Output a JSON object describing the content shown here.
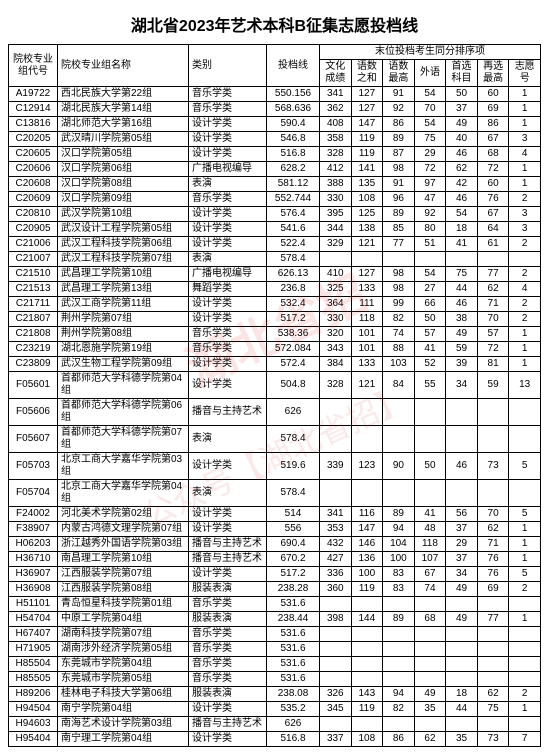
{
  "title": "湖北省2023年艺术本科B征集志愿投档线",
  "header_group": "末位投档考生同分排序项",
  "columns": {
    "code": "院校专业组代号",
    "name": "院校专业组名称",
    "type": "类别",
    "score": "投档线",
    "s1": "文化成绩",
    "s2": "语数之和",
    "s3": "语数最高",
    "s4": "外语",
    "s5": "首选科目",
    "s6": "再选最高",
    "s7": "志愿号"
  },
  "rows": [
    {
      "code": "A19722",
      "name": "西北民族大学第22组",
      "type": "音乐学类",
      "score": "550.156",
      "s1": "341",
      "s2": "127",
      "s3": "91",
      "s4": "54",
      "s5": "50",
      "s6": "60",
      "s7": "1"
    },
    {
      "code": "C12914",
      "name": "湖北民族大学第14组",
      "type": "音乐学类",
      "score": "568.636",
      "s1": "362",
      "s2": "127",
      "s3": "92",
      "s4": "70",
      "s5": "37",
      "s6": "69",
      "s7": "1"
    },
    {
      "code": "C13816",
      "name": "湖北师范大学第16组",
      "type": "设计学类",
      "score": "590.4",
      "s1": "408",
      "s2": "147",
      "s3": "86",
      "s4": "54",
      "s5": "49",
      "s6": "86",
      "s7": "1"
    },
    {
      "code": "C20205",
      "name": "武汉晴川学院第05组",
      "type": "设计学类",
      "score": "546.8",
      "s1": "358",
      "s2": "119",
      "s3": "89",
      "s4": "75",
      "s5": "40",
      "s6": "67",
      "s7": "3"
    },
    {
      "code": "C20605",
      "name": "汉口学院第05组",
      "type": "设计学类",
      "score": "516.8",
      "s1": "328",
      "s2": "119",
      "s3": "87",
      "s4": "29",
      "s5": "46",
      "s6": "68",
      "s7": "4"
    },
    {
      "code": "C20606",
      "name": "汉口学院第06组",
      "type": "广播电视编导",
      "score": "628.2",
      "s1": "412",
      "s2": "141",
      "s3": "98",
      "s4": "72",
      "s5": "62",
      "s6": "72",
      "s7": "1"
    },
    {
      "code": "C20608",
      "name": "汉口学院第08组",
      "type": "表演",
      "score": "581.12",
      "s1": "388",
      "s2": "135",
      "s3": "91",
      "s4": "97",
      "s5": "42",
      "s6": "60",
      "s7": "1"
    },
    {
      "code": "C20609",
      "name": "汉口学院第09组",
      "type": "音乐学类",
      "score": "552.744",
      "s1": "330",
      "s2": "108",
      "s3": "96",
      "s4": "47",
      "s5": "46",
      "s6": "76",
      "s7": "2"
    },
    {
      "code": "C20810",
      "name": "武汉学院第10组",
      "type": "设计学类",
      "score": "576.4",
      "s1": "395",
      "s2": "125",
      "s3": "89",
      "s4": "92",
      "s5": "54",
      "s6": "67",
      "s7": "3"
    },
    {
      "code": "C20905",
      "name": "武汉设计工程学院第05组",
      "type": "设计学类",
      "score": "541.6",
      "s1": "344",
      "s2": "138",
      "s3": "85",
      "s4": "80",
      "s5": "18",
      "s6": "64",
      "s7": "3"
    },
    {
      "code": "C21006",
      "name": "武汉工程科技学院第06组",
      "type": "设计学类",
      "score": "522.4",
      "s1": "329",
      "s2": "121",
      "s3": "77",
      "s4": "51",
      "s5": "41",
      "s6": "61",
      "s7": "2"
    },
    {
      "code": "C21007",
      "name": "武汉工程科技学院第07组",
      "type": "表演",
      "score": "578.4",
      "s1": "",
      "s2": "",
      "s3": "",
      "s4": "",
      "s5": "",
      "s6": "",
      "s7": ""
    },
    {
      "code": "C21510",
      "name": "武昌理工学院第10组",
      "type": "广播电视编导",
      "score": "626.13",
      "s1": "410",
      "s2": "127",
      "s3": "98",
      "s4": "54",
      "s5": "75",
      "s6": "77",
      "s7": "2"
    },
    {
      "code": "C21513",
      "name": "武昌理工学院第13组",
      "type": "舞蹈学类",
      "score": "236.8",
      "s1": "325",
      "s2": "133",
      "s3": "98",
      "s4": "27",
      "s5": "44",
      "s6": "62",
      "s7": "4"
    },
    {
      "code": "C21711",
      "name": "武汉工商学院第11组",
      "type": "设计学类",
      "score": "532.4",
      "s1": "364",
      "s2": "111",
      "s3": "99",
      "s4": "66",
      "s5": "46",
      "s6": "71",
      "s7": "2"
    },
    {
      "code": "C21807",
      "name": "荆州学院第07组",
      "type": "设计学类",
      "score": "517.2",
      "s1": "330",
      "s2": "118",
      "s3": "82",
      "s4": "50",
      "s5": "38",
      "s6": "70",
      "s7": "2"
    },
    {
      "code": "C21808",
      "name": "荆州学院第08组",
      "type": "音乐学类",
      "score": "538.36",
      "s1": "320",
      "s2": "101",
      "s3": "74",
      "s4": "57",
      "s5": "49",
      "s6": "57",
      "s7": "1"
    },
    {
      "code": "C23219",
      "name": "湖北恩施学院第19组",
      "type": "音乐学类",
      "score": "572.084",
      "s1": "343",
      "s2": "101",
      "s3": "88",
      "s4": "41",
      "s5": "59",
      "s6": "72",
      "s7": "1"
    },
    {
      "code": "C23809",
      "name": "武汉生物工程学院第09组",
      "type": "设计学类",
      "score": "572.4",
      "s1": "384",
      "s2": "133",
      "s3": "103",
      "s4": "52",
      "s5": "39",
      "s6": "81",
      "s7": "1"
    },
    {
      "code": "F05601",
      "name": "首都师范大学科德学院第04组",
      "type": "设计学类",
      "score": "504.8",
      "s1": "328",
      "s2": "121",
      "s3": "84",
      "s4": "55",
      "s5": "34",
      "s6": "59",
      "s7": "13"
    },
    {
      "code": "F05606",
      "name": "首都师范大学科德学院第06组",
      "type": "播音与主持艺术",
      "score": "626",
      "s1": "",
      "s2": "",
      "s3": "",
      "s4": "",
      "s5": "",
      "s6": "",
      "s7": ""
    },
    {
      "code": "F05607",
      "name": "首都师范大学科德学院第07组",
      "type": "表演",
      "score": "578.4",
      "s1": "",
      "s2": "",
      "s3": "",
      "s4": "",
      "s5": "",
      "s6": "",
      "s7": ""
    },
    {
      "code": "F05703",
      "name": "北京工商大学嘉华学院第03组",
      "type": "设计学类",
      "score": "519.6",
      "s1": "339",
      "s2": "123",
      "s3": "90",
      "s4": "50",
      "s5": "46",
      "s6": "73",
      "s7": "5"
    },
    {
      "code": "F05704",
      "name": "北京工商大学嘉华学院第04组",
      "type": "表演",
      "score": "578.4",
      "s1": "",
      "s2": "",
      "s3": "",
      "s4": "",
      "s5": "",
      "s6": "",
      "s7": ""
    },
    {
      "code": "F24002",
      "name": "河北美术学院第02组",
      "type": "设计学类",
      "score": "514",
      "s1": "341",
      "s2": "116",
      "s3": "89",
      "s4": "41",
      "s5": "56",
      "s6": "70",
      "s7": "5"
    },
    {
      "code": "F38907",
      "name": "内蒙古鸿德文理学院第07组",
      "type": "设计学类",
      "score": "556",
      "s1": "353",
      "s2": "147",
      "s3": "94",
      "s4": "48",
      "s5": "37",
      "s6": "62",
      "s7": "1"
    },
    {
      "code": "H06203",
      "name": "浙江越秀外国语学院第03组",
      "type": "播音与主持艺术",
      "score": "690.4",
      "s1": "432",
      "s2": "146",
      "s3": "104",
      "s4": "118",
      "s5": "29",
      "s6": "71",
      "s7": "1"
    },
    {
      "code": "H36710",
      "name": "南昌理工学院第10组",
      "type": "播音与主持艺术",
      "score": "670.2",
      "s1": "427",
      "s2": "136",
      "s3": "100",
      "s4": "107",
      "s5": "37",
      "s6": "76",
      "s7": "1"
    },
    {
      "code": "H36907",
      "name": "江西服装学院第07组",
      "type": "设计学类",
      "score": "517.2",
      "s1": "336",
      "s2": "100",
      "s3": "83",
      "s4": "67",
      "s5": "34",
      "s6": "76",
      "s7": "5"
    },
    {
      "code": "H36908",
      "name": "江西服装学院第08组",
      "type": "服装表演",
      "score": "238.28",
      "s1": "360",
      "s2": "119",
      "s3": "83",
      "s4": "74",
      "s5": "49",
      "s6": "69",
      "s7": "2"
    },
    {
      "code": "H51101",
      "name": "青岛恒星科技学院第01组",
      "type": "音乐学类",
      "score": "531.6",
      "s1": "",
      "s2": "",
      "s3": "",
      "s4": "",
      "s5": "",
      "s6": "",
      "s7": ""
    },
    {
      "code": "H54704",
      "name": "中原工学院第04组",
      "type": "服装表演",
      "score": "238.44",
      "s1": "398",
      "s2": "144",
      "s3": "89",
      "s4": "68",
      "s5": "49",
      "s6": "77",
      "s7": "1"
    },
    {
      "code": "H67407",
      "name": "湖南科技学院第07组",
      "type": "音乐学类",
      "score": "531.6",
      "s1": "",
      "s2": "",
      "s3": "",
      "s4": "",
      "s5": "",
      "s6": "",
      "s7": ""
    },
    {
      "code": "H71905",
      "name": "湖南涉外经济学院第05组",
      "type": "音乐学类",
      "score": "531.6",
      "s1": "",
      "s2": "",
      "s3": "",
      "s4": "",
      "s5": "",
      "s6": "",
      "s7": ""
    },
    {
      "code": "H85504",
      "name": "东莞城市学院第04组",
      "type": "音乐学类",
      "score": "531.6",
      "s1": "",
      "s2": "",
      "s3": "",
      "s4": "",
      "s5": "",
      "s6": "",
      "s7": ""
    },
    {
      "code": "H85505",
      "name": "东莞城市学院第05组",
      "type": "音乐学类",
      "score": "531.6",
      "s1": "",
      "s2": "",
      "s3": "",
      "s4": "",
      "s5": "",
      "s6": "",
      "s7": ""
    },
    {
      "code": "H89206",
      "name": "桂林电子科技大学第06组",
      "type": "服装表演",
      "score": "238.08",
      "s1": "326",
      "s2": "143",
      "s3": "94",
      "s4": "49",
      "s5": "18",
      "s6": "62",
      "s7": "2"
    },
    {
      "code": "H94504",
      "name": "南宁学院第04组",
      "type": "设计学类",
      "score": "535.2",
      "s1": "345",
      "s2": "119",
      "s3": "82",
      "s4": "35",
      "s5": "44",
      "s6": "75",
      "s7": "1"
    },
    {
      "code": "H94603",
      "name": "南海艺术设计学院第03组",
      "type": "播音与主持艺术",
      "score": "626",
      "s1": "",
      "s2": "",
      "s3": "",
      "s4": "",
      "s5": "",
      "s6": "",
      "s7": ""
    },
    {
      "code": "H95404",
      "name": "南宁理工学院第04组",
      "type": "设计学类",
      "score": "516.8",
      "s1": "337",
      "s2": "108",
      "s3": "86",
      "s4": "62",
      "s5": "35",
      "s6": "73",
      "s7": "7"
    }
  ],
  "watermark1": "湖北省招",
  "watermark2": "公众号【湖北省招】"
}
